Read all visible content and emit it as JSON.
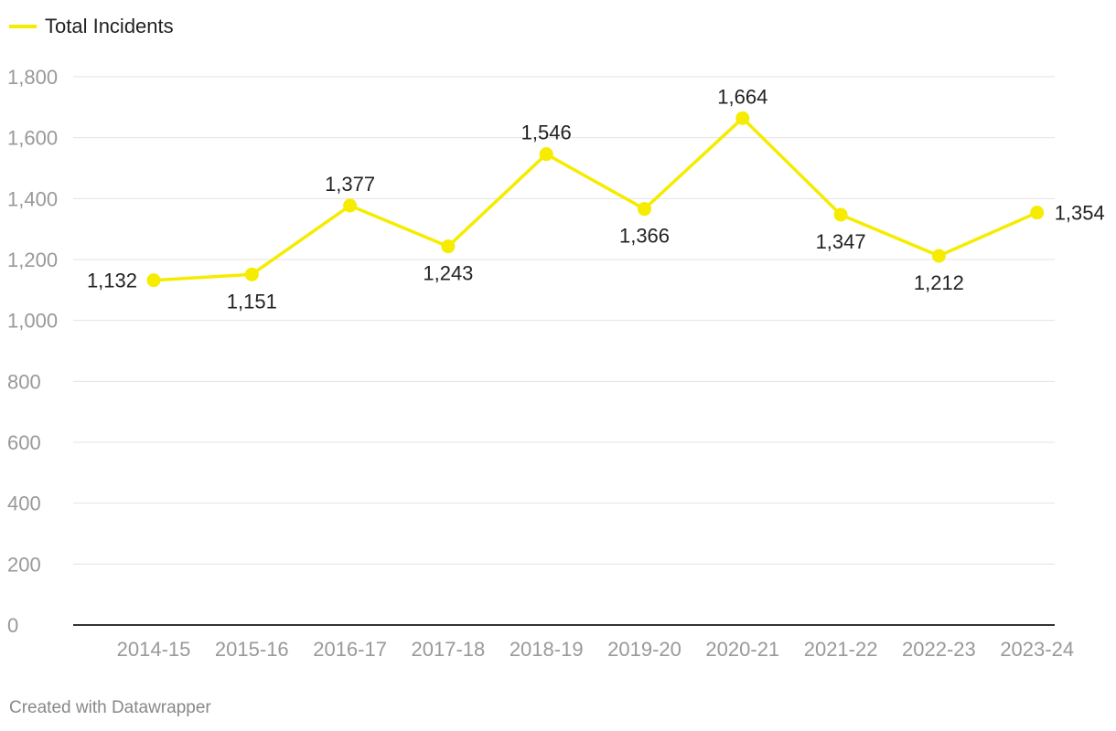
{
  "legend": {
    "label": "Total Incidents"
  },
  "footer": {
    "text": "Created with Datawrapper"
  },
  "colors": {
    "line": "#f5ec00",
    "grid": "#e3e3e3",
    "axis": "#333333",
    "tick_text": "#999999",
    "label_text": "#222222"
  },
  "chart_data": {
    "type": "line",
    "title": "",
    "xlabel": "",
    "ylabel": "",
    "categories": [
      "2014-15",
      "2015-16",
      "2016-17",
      "2017-18",
      "2018-19",
      "2019-20",
      "2020-21",
      "2021-22",
      "2022-23",
      "2023-24"
    ],
    "series": [
      {
        "name": "Total Incidents",
        "values": [
          1132,
          1151,
          1377,
          1243,
          1546,
          1366,
          1664,
          1347,
          1212,
          1354
        ]
      }
    ],
    "data_labels": [
      "1,132",
      "1,151",
      "1,377",
      "1,243",
      "1,546",
      "1,366",
      "1,664",
      "1,347",
      "1,212",
      "1,354"
    ],
    "ylim": [
      0,
      1800
    ],
    "yticks": [
      0,
      200,
      400,
      600,
      800,
      1000,
      1200,
      1400,
      1600,
      1800
    ],
    "ytick_labels": [
      "0",
      "200",
      "400",
      "600",
      "800",
      "1,000",
      "1,200",
      "1,400",
      "1,600",
      "1,800"
    ],
    "grid": true,
    "legend_position": "top-left"
  }
}
